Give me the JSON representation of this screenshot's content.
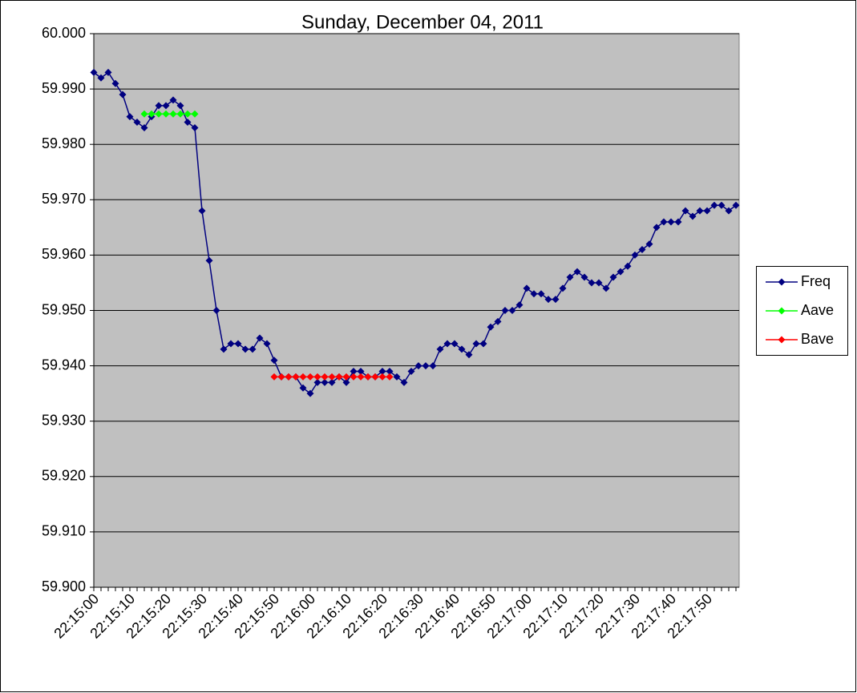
{
  "chart_data": {
    "type": "line",
    "title": "Sunday, December 04, 2011",
    "categories": [
      "22:15:00",
      null,
      null,
      null,
      null,
      "22:15:10",
      null,
      null,
      null,
      null,
      "22:15:20",
      null,
      null,
      null,
      null,
      "22:15:30",
      null,
      null,
      null,
      null,
      "22:15:40",
      null,
      null,
      null,
      null,
      "22:15:50",
      null,
      null,
      null,
      null,
      "22:16:00",
      null,
      null,
      null,
      null,
      "22:16:10",
      null,
      null,
      null,
      null,
      "22:16:20",
      null,
      null,
      null,
      null,
      "22:16:30",
      null,
      null,
      null,
      null,
      "22:16:40",
      null,
      null,
      null,
      null,
      "22:16:50",
      null,
      null,
      null,
      null,
      "22:17:00",
      null,
      null,
      null,
      null,
      "22:17:10",
      null,
      null,
      null,
      null,
      "22:17:20",
      null,
      null,
      null,
      null,
      "22:17:30",
      null,
      null,
      null,
      null,
      "22:17:40",
      null,
      null,
      null,
      null,
      "22:17:50",
      null,
      null,
      null,
      null
    ],
    "series": [
      {
        "name": "Freq",
        "color": "#000080",
        "values": [
          59.993,
          59.992,
          59.993,
          59.991,
          59.989,
          59.985,
          59.984,
          59.983,
          59.985,
          59.987,
          59.987,
          59.988,
          59.987,
          59.984,
          59.983,
          59.968,
          59.959,
          59.95,
          59.943,
          59.944,
          59.944,
          59.943,
          59.943,
          59.945,
          59.944,
          59.941,
          59.938,
          59.938,
          59.938,
          59.936,
          59.935,
          59.937,
          59.937,
          59.937,
          59.938,
          59.937,
          59.939,
          59.939,
          59.938,
          59.938,
          59.939,
          59.939,
          59.938,
          59.937,
          59.939,
          59.94,
          59.94,
          59.94,
          59.943,
          59.944,
          59.944,
          59.943,
          59.942,
          59.944,
          59.944,
          59.947,
          59.948,
          59.95,
          59.95,
          59.951,
          59.954,
          59.953,
          59.953,
          59.952,
          59.952,
          59.954,
          59.956,
          59.957,
          59.956,
          59.955,
          59.955,
          59.954,
          59.956,
          59.957,
          59.958,
          59.96,
          59.961,
          59.962,
          59.965,
          59.966,
          59.966,
          59.966,
          59.968,
          59.967,
          59.968,
          59.968,
          59.969,
          59.969,
          59.968,
          59.969
        ]
      },
      {
        "name": "Aave",
        "color": "#00ff00",
        "values": [
          null,
          null,
          null,
          null,
          null,
          null,
          null,
          59.9855,
          59.9855,
          59.9855,
          59.9855,
          59.9855,
          59.9855,
          59.9855,
          59.9855,
          null,
          null,
          null,
          null,
          null,
          null,
          null,
          null,
          null,
          null,
          null,
          null,
          null,
          null,
          null,
          null,
          null,
          null,
          null,
          null,
          null,
          null,
          null,
          null,
          null,
          null,
          null,
          null,
          null,
          null,
          null,
          null,
          null,
          null,
          null,
          null,
          null,
          null,
          null,
          null,
          null,
          null,
          null,
          null,
          null,
          null,
          null,
          null,
          null,
          null,
          null,
          null,
          null,
          null,
          null,
          null,
          null,
          null,
          null,
          null,
          null,
          null,
          null,
          null,
          null,
          null,
          null,
          null,
          null,
          null,
          null,
          null,
          null,
          null,
          null
        ]
      },
      {
        "name": "Bave",
        "color": "#ff0000",
        "values": [
          null,
          null,
          null,
          null,
          null,
          null,
          null,
          null,
          null,
          null,
          null,
          null,
          null,
          null,
          null,
          null,
          null,
          null,
          null,
          null,
          null,
          null,
          null,
          null,
          null,
          59.938,
          59.938,
          59.938,
          59.938,
          59.938,
          59.938,
          59.938,
          59.938,
          59.938,
          59.938,
          59.938,
          59.938,
          59.938,
          59.938,
          59.938,
          59.938,
          59.938,
          null,
          null,
          null,
          null,
          null,
          null,
          null,
          null,
          null,
          null,
          null,
          null,
          null,
          null,
          null,
          null,
          null,
          null,
          null,
          null,
          null,
          null,
          null,
          null,
          null,
          null,
          null,
          null,
          null,
          null,
          null,
          null,
          null,
          null,
          null,
          null,
          null,
          null,
          null,
          null,
          null,
          null,
          null,
          null,
          null,
          null,
          null,
          null
        ]
      }
    ],
    "ylim": [
      59.9,
      60.0
    ],
    "yticks": [
      {
        "value": 59.9,
        "label": "59.900"
      },
      {
        "value": 59.91,
        "label": "59.910"
      },
      {
        "value": 59.92,
        "label": "59.920"
      },
      {
        "value": 59.93,
        "label": "59.930"
      },
      {
        "value": 59.94,
        "label": "59.940"
      },
      {
        "value": 59.95,
        "label": "59.950"
      },
      {
        "value": 59.96,
        "label": "59.960"
      },
      {
        "value": 59.97,
        "label": "59.970"
      },
      {
        "value": 59.98,
        "label": "59.980"
      },
      {
        "value": 59.99,
        "label": "59.990"
      },
      {
        "value": 60.0,
        "label": "60.000"
      }
    ],
    "grid": true,
    "legend": "right"
  }
}
